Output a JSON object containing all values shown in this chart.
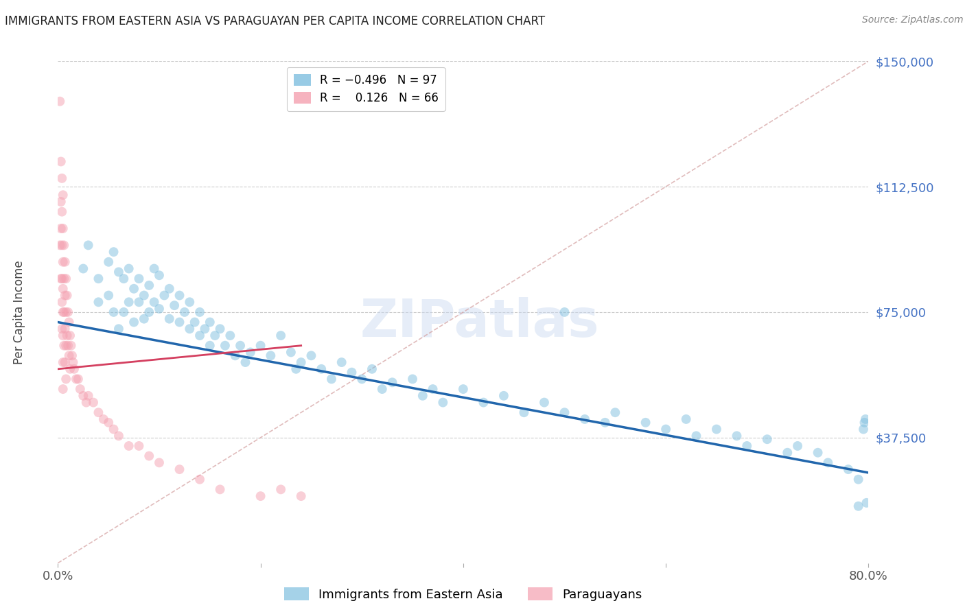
{
  "title": "IMMIGRANTS FROM EASTERN ASIA VS PARAGUAYAN PER CAPITA INCOME CORRELATION CHART",
  "source": "Source: ZipAtlas.com",
  "ylabel": "Per Capita Income",
  "yticks": [
    0,
    37500,
    75000,
    112500,
    150000
  ],
  "ytick_labels": [
    "",
    "$37,500",
    "$75,000",
    "$112,500",
    "$150,000"
  ],
  "xlim": [
    0.0,
    0.8
  ],
  "ylim": [
    0,
    150000
  ],
  "watermark": "ZIPatlas",
  "blue_color": "#7fbfdf",
  "pink_color": "#f4a0b0",
  "blue_line_color": "#2166ac",
  "pink_line_color": "#d44060",
  "label_blue": "Immigrants from Eastern Asia",
  "label_pink": "Paraguayans",
  "blue_line": [
    0.0,
    72000,
    0.8,
    27000
  ],
  "pink_line": [
    0.0,
    58000,
    0.24,
    65000
  ],
  "ref_line": [
    0.0,
    0,
    0.8,
    150000
  ],
  "blue_scatter_x": [
    0.025,
    0.03,
    0.04,
    0.04,
    0.05,
    0.05,
    0.055,
    0.055,
    0.06,
    0.06,
    0.065,
    0.065,
    0.07,
    0.07,
    0.075,
    0.075,
    0.08,
    0.08,
    0.085,
    0.085,
    0.09,
    0.09,
    0.095,
    0.095,
    0.1,
    0.1,
    0.105,
    0.11,
    0.11,
    0.115,
    0.12,
    0.12,
    0.125,
    0.13,
    0.13,
    0.135,
    0.14,
    0.14,
    0.145,
    0.15,
    0.15,
    0.155,
    0.16,
    0.165,
    0.17,
    0.175,
    0.18,
    0.185,
    0.19,
    0.2,
    0.21,
    0.22,
    0.23,
    0.235,
    0.24,
    0.25,
    0.26,
    0.27,
    0.28,
    0.29,
    0.3,
    0.31,
    0.32,
    0.33,
    0.35,
    0.36,
    0.37,
    0.38,
    0.4,
    0.42,
    0.44,
    0.46,
    0.48,
    0.5,
    0.5,
    0.52,
    0.54,
    0.55,
    0.58,
    0.6,
    0.62,
    0.63,
    0.65,
    0.67,
    0.68,
    0.7,
    0.72,
    0.73,
    0.75,
    0.76,
    0.78,
    0.79,
    0.79,
    0.795,
    0.796,
    0.797,
    0.798
  ],
  "blue_scatter_y": [
    88000,
    95000,
    85000,
    78000,
    90000,
    80000,
    93000,
    75000,
    87000,
    70000,
    85000,
    75000,
    88000,
    78000,
    82000,
    72000,
    85000,
    78000,
    80000,
    73000,
    83000,
    75000,
    88000,
    78000,
    86000,
    76000,
    80000,
    82000,
    73000,
    77000,
    80000,
    72000,
    75000,
    78000,
    70000,
    72000,
    75000,
    68000,
    70000,
    72000,
    65000,
    68000,
    70000,
    65000,
    68000,
    62000,
    65000,
    60000,
    63000,
    65000,
    62000,
    68000,
    63000,
    58000,
    60000,
    62000,
    58000,
    55000,
    60000,
    57000,
    55000,
    58000,
    52000,
    54000,
    55000,
    50000,
    52000,
    48000,
    52000,
    48000,
    50000,
    45000,
    48000,
    45000,
    75000,
    43000,
    42000,
    45000,
    42000,
    40000,
    43000,
    38000,
    40000,
    38000,
    35000,
    37000,
    33000,
    35000,
    33000,
    30000,
    28000,
    25000,
    17000,
    40000,
    42000,
    43000,
    18000
  ],
  "pink_scatter_x": [
    0.002,
    0.002,
    0.003,
    0.003,
    0.003,
    0.003,
    0.004,
    0.004,
    0.004,
    0.004,
    0.004,
    0.004,
    0.005,
    0.005,
    0.005,
    0.005,
    0.005,
    0.005,
    0.005,
    0.005,
    0.006,
    0.006,
    0.006,
    0.006,
    0.007,
    0.007,
    0.007,
    0.007,
    0.008,
    0.008,
    0.008,
    0.008,
    0.009,
    0.009,
    0.01,
    0.01,
    0.011,
    0.011,
    0.012,
    0.012,
    0.013,
    0.014,
    0.015,
    0.016,
    0.018,
    0.02,
    0.022,
    0.025,
    0.028,
    0.03,
    0.035,
    0.04,
    0.045,
    0.05,
    0.055,
    0.06,
    0.07,
    0.08,
    0.09,
    0.1,
    0.12,
    0.14,
    0.16,
    0.2,
    0.22,
    0.24
  ],
  "pink_scatter_y": [
    138000,
    95000,
    120000,
    108000,
    100000,
    85000,
    115000,
    105000,
    95000,
    85000,
    78000,
    70000,
    110000,
    100000,
    90000,
    82000,
    75000,
    68000,
    60000,
    52000,
    95000,
    85000,
    75000,
    65000,
    90000,
    80000,
    70000,
    60000,
    85000,
    75000,
    65000,
    55000,
    80000,
    68000,
    75000,
    65000,
    72000,
    62000,
    68000,
    58000,
    65000,
    62000,
    60000,
    58000,
    55000,
    55000,
    52000,
    50000,
    48000,
    50000,
    48000,
    45000,
    43000,
    42000,
    40000,
    38000,
    35000,
    35000,
    32000,
    30000,
    28000,
    25000,
    22000,
    20000,
    22000,
    20000
  ]
}
